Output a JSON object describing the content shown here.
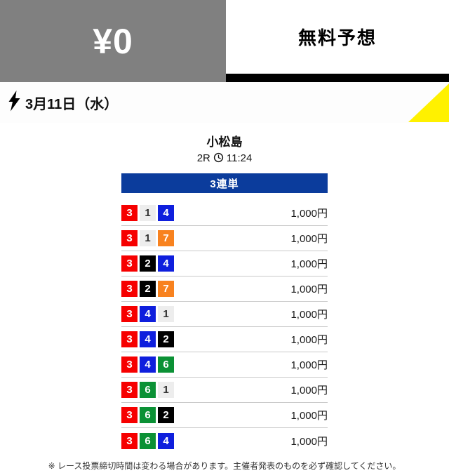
{
  "header": {
    "price": "¥0",
    "label": "無料予想"
  },
  "date_bar": {
    "date": "3月11日（水）"
  },
  "race": {
    "venue": "小松島",
    "race_no": "2R",
    "time": "11:24"
  },
  "bet_type": "3連単",
  "bets": [
    {
      "numbers": [
        3,
        1,
        4
      ],
      "amount": "1,000円"
    },
    {
      "numbers": [
        3,
        1,
        7
      ],
      "amount": "1,000円"
    },
    {
      "numbers": [
        3,
        2,
        4
      ],
      "amount": "1,000円"
    },
    {
      "numbers": [
        3,
        2,
        7
      ],
      "amount": "1,000円"
    },
    {
      "numbers": [
        3,
        4,
        1
      ],
      "amount": "1,000円"
    },
    {
      "numbers": [
        3,
        4,
        2
      ],
      "amount": "1,000円"
    },
    {
      "numbers": [
        3,
        4,
        6
      ],
      "amount": "1,000円"
    },
    {
      "numbers": [
        3,
        6,
        1
      ],
      "amount": "1,000円"
    },
    {
      "numbers": [
        3,
        6,
        2
      ],
      "amount": "1,000円"
    },
    {
      "numbers": [
        3,
        6,
        4
      ],
      "amount": "1,000円"
    }
  ],
  "footer": {
    "note": "※ レース投票締切時間は変わる場合があります。主催者発表のものを必ず確認してください。"
  },
  "icons": {
    "lightning": "lightning-bolt",
    "clock": "clock-face"
  },
  "colors": {
    "accent_blue": "#0b3c9c",
    "header_gray": "#808080",
    "corner_yellow": "#fff100",
    "badge_colors": {
      "1": {
        "bg": "#ededed",
        "fg": "#333333"
      },
      "2": {
        "bg": "#000000",
        "fg": "#ffffff"
      },
      "3": {
        "bg": "#f60000",
        "fg": "#ffffff"
      },
      "4": {
        "bg": "#0f1fdd",
        "fg": "#ffffff"
      },
      "6": {
        "bg": "#0b9135",
        "fg": "#ffffff"
      },
      "7": {
        "bg": "#f8821f",
        "fg": "#ffffff"
      }
    }
  }
}
